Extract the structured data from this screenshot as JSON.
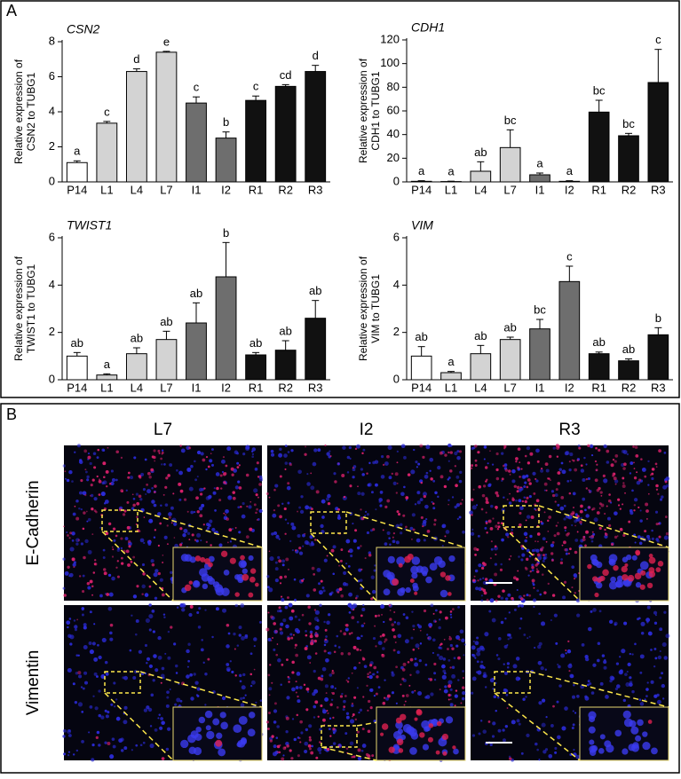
{
  "panel_labels": [
    "A",
    "B"
  ],
  "chart_data": [
    {
      "type": "bar",
      "title": "CSN2",
      "ylabel": [
        "Relative expression of",
        "CSN2 to TUBG1"
      ],
      "categories": [
        "P14",
        "L1",
        "L4",
        "L7",
        "I1",
        "I2",
        "R1",
        "R2",
        "R3"
      ],
      "values": [
        1.1,
        3.35,
        6.3,
        7.4,
        4.5,
        2.5,
        4.65,
        5.45,
        6.3
      ],
      "errors": [
        0.1,
        0.1,
        0.15,
        0.05,
        0.35,
        0.35,
        0.25,
        0.1,
        0.35
      ],
      "annotations": [
        "a",
        "c",
        "d",
        "e",
        "c",
        "b",
        "c",
        "cd",
        "d"
      ],
      "colors": [
        "#ffffff",
        "#d3d3d3",
        "#d3d3d3",
        "#d3d3d3",
        "#6e6e6e",
        "#6e6e6e",
        "#111111",
        "#111111",
        "#111111"
      ],
      "ylim": [
        0,
        8
      ],
      "yticks": [
        0,
        2,
        4,
        6,
        8
      ]
    },
    {
      "type": "bar",
      "title": "CDH1",
      "ylabel": [
        "Relative expression of",
        "CDH1 to TUBG1"
      ],
      "categories": [
        "P14",
        "L1",
        "L4",
        "L7",
        "I1",
        "I2",
        "R1",
        "R2",
        "R3"
      ],
      "values": [
        0.5,
        0.3,
        9,
        29,
        6,
        0.5,
        59,
        39,
        84
      ],
      "errors": [
        0.5,
        0.3,
        8,
        15,
        1.5,
        0.5,
        10,
        2,
        28
      ],
      "annotations": [
        "a",
        "a",
        "ab",
        "bc",
        "a",
        "a",
        "bc",
        "bc",
        "c"
      ],
      "colors": [
        "#ffffff",
        "#d3d3d3",
        "#d3d3d3",
        "#d3d3d3",
        "#6e6e6e",
        "#6e6e6e",
        "#111111",
        "#111111",
        "#111111"
      ],
      "ylim": [
        0,
        120
      ],
      "yticks": [
        0,
        20,
        40,
        60,
        80,
        100,
        120
      ]
    },
    {
      "type": "bar",
      "title": "TWIST1",
      "ylabel": [
        "Relative expression of",
        "TWIST1 to TUBG1"
      ],
      "categories": [
        "P14",
        "L1",
        "L4",
        "L7",
        "I1",
        "I2",
        "R1",
        "R2",
        "R3"
      ],
      "values": [
        1.0,
        0.2,
        1.1,
        1.7,
        2.4,
        4.35,
        1.05,
        1.25,
        2.6
      ],
      "errors": [
        0.15,
        0.05,
        0.25,
        0.35,
        0.85,
        1.45,
        0.1,
        0.4,
        0.75
      ],
      "annotations": [
        "ab",
        "a",
        "ab",
        "ab",
        "ab",
        "b",
        "ab",
        "ab",
        "ab"
      ],
      "colors": [
        "#ffffff",
        "#d3d3d3",
        "#d3d3d3",
        "#d3d3d3",
        "#6e6e6e",
        "#6e6e6e",
        "#111111",
        "#111111",
        "#111111"
      ],
      "ylim": [
        0,
        6
      ],
      "yticks": [
        0,
        2,
        4,
        6
      ]
    },
    {
      "type": "bar",
      "title": "VIM",
      "ylabel": [
        "Relative expression of",
        "VIM to TUBG1"
      ],
      "categories": [
        "P14",
        "L1",
        "L4",
        "L7",
        "I1",
        "I2",
        "R1",
        "R2",
        "R3"
      ],
      "values": [
        1.0,
        0.3,
        1.1,
        1.7,
        2.15,
        4.15,
        1.1,
        0.8,
        1.9
      ],
      "errors": [
        0.4,
        0.05,
        0.35,
        0.1,
        0.4,
        0.65,
        0.07,
        0.08,
        0.3
      ],
      "annotations": [
        "ab",
        "a",
        "ab",
        "ab",
        "bc",
        "c",
        "ab",
        "ab",
        "b"
      ],
      "colors": [
        "#ffffff",
        "#d3d3d3",
        "#d3d3d3",
        "#d3d3d3",
        "#6e6e6e",
        "#6e6e6e",
        "#111111",
        "#111111",
        "#111111"
      ],
      "ylim": [
        0,
        6
      ],
      "yticks": [
        0,
        2,
        4,
        6
      ]
    }
  ],
  "micrographs": {
    "columns": [
      "L7",
      "I2",
      "R3"
    ],
    "rows": [
      "E-Cadherin",
      "Vimentin"
    ]
  }
}
